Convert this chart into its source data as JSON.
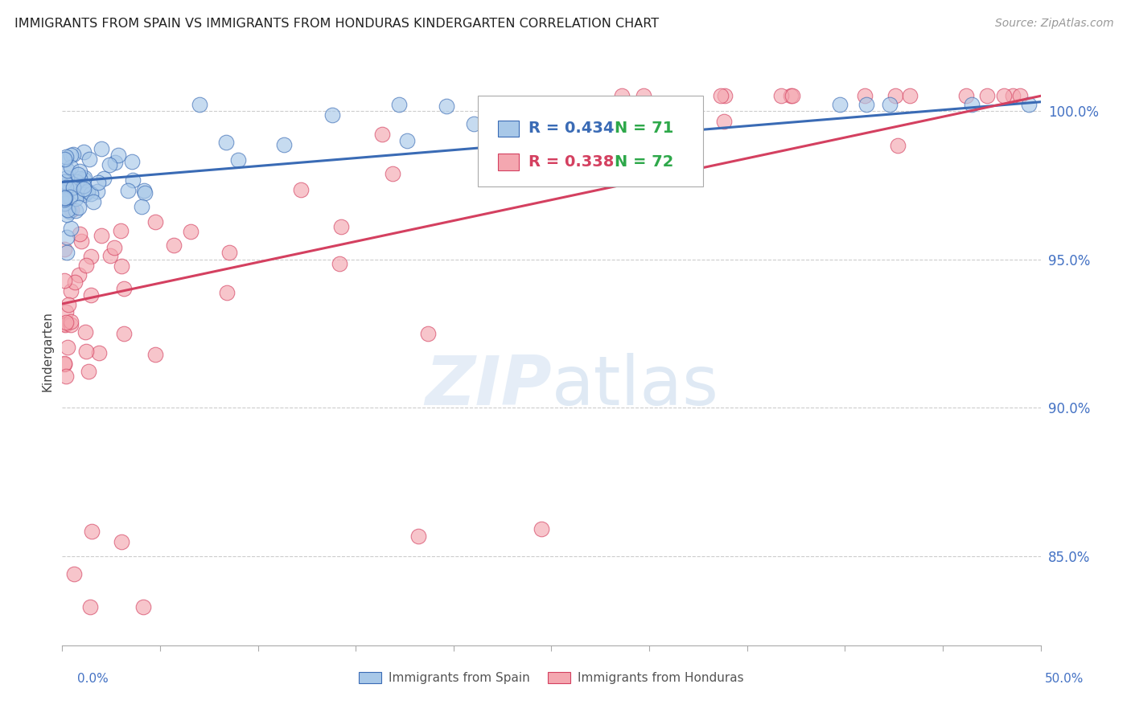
{
  "title": "IMMIGRANTS FROM SPAIN VS IMMIGRANTS FROM HONDURAS KINDERGARTEN CORRELATION CHART",
  "source": "Source: ZipAtlas.com",
  "ylabel": "Kindergarten",
  "ytick_labels": [
    "100.0%",
    "95.0%",
    "90.0%",
    "85.0%"
  ],
  "ytick_values": [
    1.0,
    0.95,
    0.9,
    0.85
  ],
  "xlim": [
    0.0,
    0.5
  ],
  "ylim": [
    0.82,
    1.018
  ],
  "legend_blue_r": "0.434",
  "legend_blue_n": "71",
  "legend_pink_r": "0.338",
  "legend_pink_n": "72",
  "legend_label_blue": "Immigrants from Spain",
  "legend_label_pink": "Immigrants from Honduras",
  "blue_color": "#a8c8e8",
  "pink_color": "#f4a7b0",
  "trendline_blue_color": "#3a6bb5",
  "trendline_pink_color": "#d44060",
  "watermark_zip": "ZIP",
  "watermark_atlas": "atlas",
  "blue_seed": 42,
  "pink_seed": 99
}
